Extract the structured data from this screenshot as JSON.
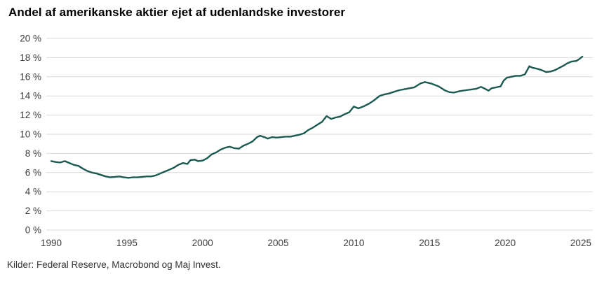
{
  "chart_data": {
    "type": "line",
    "title": "Andel af amerikanske aktier ejet af udenlandske investorer",
    "source_note": "Kilder: Federal Reserve, Macrobond og Maj Invest.",
    "xlabel": "",
    "ylabel": "",
    "legend_position": "none",
    "grid": true,
    "grid_color": "#d9d9d9",
    "line_color": "#1b5a52",
    "tick_color": "#3d3d3d",
    "x_range": [
      1989.675,
      2025.79
    ],
    "y_range": [
      0,
      20
    ],
    "x_ticks": [
      {
        "value": 1990,
        "label": "1990"
      },
      {
        "value": 1995,
        "label": "1995"
      },
      {
        "value": 2000,
        "label": "2000"
      },
      {
        "value": 2005,
        "label": "2005"
      },
      {
        "value": 2010,
        "label": "2010"
      },
      {
        "value": 2015,
        "label": "2015"
      },
      {
        "value": 2020,
        "label": "2020"
      },
      {
        "value": 2025,
        "label": "2025"
      }
    ],
    "y_ticks": [
      {
        "value": 20,
        "label": "20 %"
      },
      {
        "value": 18,
        "label": "18 %"
      },
      {
        "value": 16,
        "label": "16 %"
      },
      {
        "value": 14,
        "label": "14 %"
      },
      {
        "value": 12,
        "label": "12 %"
      },
      {
        "value": 10,
        "label": "10 %"
      },
      {
        "value": 8,
        "label": "8 %"
      },
      {
        "value": 6,
        "label": "6 %"
      },
      {
        "value": 4,
        "label": "4 %"
      },
      {
        "value": 2,
        "label": "2 %"
      },
      {
        "value": 0,
        "label": "0 %"
      }
    ],
    "series": [
      {
        "name": "Andel af amerikanske aktier ejet af udenlandske investorer",
        "unit": "%",
        "x": [
          1990.0,
          1990.3,
          1990.6,
          1990.9,
          1991.2,
          1991.5,
          1991.8,
          1992.1,
          1992.4,
          1992.7,
          1993.0,
          1993.3,
          1993.6,
          1993.9,
          1994.2,
          1994.5,
          1994.8,
          1995.1,
          1995.4,
          1995.7,
          1996.0,
          1996.3,
          1996.6,
          1996.9,
          1997.2,
          1997.5,
          1997.8,
          1998.1,
          1998.4,
          1998.7,
          1999.0,
          1999.2,
          1999.5,
          1999.7,
          2000.0,
          2000.3,
          2000.6,
          2000.9,
          2001.2,
          2001.5,
          2001.8,
          2002.1,
          2002.4,
          2002.7,
          2003.0,
          2003.3,
          2003.6,
          2003.8,
          2004.1,
          2004.3,
          2004.6,
          2004.9,
          2005.2,
          2005.5,
          2005.8,
          2006.1,
          2006.4,
          2006.7,
          2007.0,
          2007.3,
          2007.6,
          2007.9,
          2008.2,
          2008.5,
          2008.8,
          2009.1,
          2009.4,
          2009.7,
          2010.0,
          2010.3,
          2010.7,
          2011.0,
          2011.3,
          2011.7,
          2012.0,
          2012.3,
          2012.6,
          2013.0,
          2013.5,
          2014.0,
          2014.4,
          2014.7,
          2015.1,
          2015.6,
          2016.0,
          2016.3,
          2016.6,
          2017.0,
          2017.4,
          2017.9,
          2018.1,
          2018.4,
          2018.6,
          2018.9,
          2019.1,
          2019.4,
          2019.7,
          2019.9,
          2020.1,
          2020.4,
          2020.7,
          2021.0,
          2021.3,
          2021.6,
          2021.8,
          2022.1,
          2022.4,
          2022.7,
          2023.0,
          2023.3,
          2023.6,
          2023.9,
          2024.1,
          2024.4,
          2024.7,
          2024.9,
          2025.1
        ],
        "y": [
          7.2,
          7.1,
          7.05,
          7.2,
          7.0,
          6.8,
          6.7,
          6.4,
          6.15,
          6.0,
          5.9,
          5.75,
          5.6,
          5.5,
          5.55,
          5.6,
          5.5,
          5.45,
          5.5,
          5.5,
          5.55,
          5.6,
          5.6,
          5.7,
          5.9,
          6.1,
          6.3,
          6.5,
          6.8,
          7.0,
          6.9,
          7.3,
          7.35,
          7.2,
          7.25,
          7.5,
          7.9,
          8.1,
          8.4,
          8.6,
          8.7,
          8.55,
          8.5,
          8.8,
          9.0,
          9.25,
          9.7,
          9.85,
          9.7,
          9.55,
          9.7,
          9.65,
          9.7,
          9.75,
          9.75,
          9.85,
          9.95,
          10.1,
          10.45,
          10.7,
          11.0,
          11.3,
          11.9,
          11.6,
          11.75,
          11.85,
          12.1,
          12.3,
          12.9,
          12.7,
          12.95,
          13.2,
          13.5,
          14.0,
          14.15,
          14.25,
          14.4,
          14.6,
          14.75,
          14.9,
          15.3,
          15.45,
          15.3,
          15.0,
          14.6,
          14.4,
          14.35,
          14.5,
          14.6,
          14.7,
          14.75,
          14.95,
          14.8,
          14.55,
          14.8,
          14.9,
          15.0,
          15.6,
          15.9,
          16.0,
          16.1,
          16.1,
          16.25,
          17.1,
          16.95,
          16.85,
          16.7,
          16.5,
          16.55,
          16.7,
          16.95,
          17.2,
          17.4,
          17.6,
          17.65,
          17.85,
          18.1
        ]
      }
    ]
  }
}
